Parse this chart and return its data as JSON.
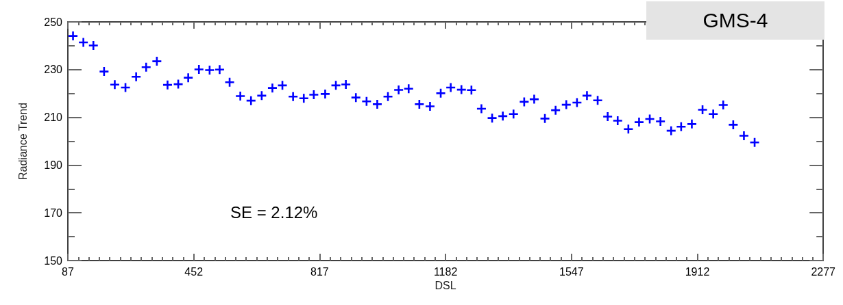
{
  "chart_data": {
    "type": "scatter",
    "title": "GMS-4",
    "xlabel": "DSL",
    "ylabel": "Radiance Trend",
    "annotations": [
      "SE = 2.12%"
    ],
    "x": [
      102,
      132,
      161,
      192,
      223,
      254,
      285,
      314,
      345,
      376,
      407,
      436,
      467,
      498,
      527,
      556,
      587,
      618,
      649,
      680,
      709,
      740,
      771,
      800,
      833,
      864,
      893,
      922,
      953,
      984,
      1015,
      1046,
      1075,
      1106,
      1137,
      1168,
      1197,
      1228,
      1257,
      1286,
      1317,
      1348,
      1379,
      1410,
      1439,
      1470,
      1501,
      1532,
      1563,
      1592,
      1623,
      1652,
      1681,
      1712,
      1743,
      1774,
      1805,
      1836,
      1865,
      1896,
      1927,
      1958,
      1987,
      2016,
      2047,
      2078
    ],
    "series": [
      {
        "color": "#0000ff",
        "values": [
          244.1,
          241.4,
          240.1,
          229.2,
          223.7,
          222.5,
          227.0,
          231.0,
          233.5,
          223.6,
          223.9,
          226.6,
          230.1,
          229.8,
          230.0,
          224.7,
          218.9,
          217.0,
          219.1,
          222.3,
          223.4,
          218.7,
          218.0,
          219.5,
          219.8,
          223.4,
          223.8,
          218.3,
          216.7,
          215.5,
          218.7,
          221.5,
          222.0,
          215.5,
          214.6,
          220.1,
          222.5,
          221.6,
          221.4,
          213.6,
          209.7,
          210.5,
          211.4,
          216.5,
          217.6,
          209.5,
          213.0,
          215.3,
          216.2,
          219.1,
          217.1,
          210.3,
          208.6,
          205.1,
          208.0,
          209.3,
          208.3,
          204.4,
          206.1,
          207.2,
          213.2,
          211.4,
          215.2,
          206.9,
          202.3,
          199.5
        ]
      }
    ],
    "xlim": [
      87,
      2277
    ],
    "xticks": [
      87,
      452,
      817,
      1182,
      1547,
      1912,
      2277
    ],
    "ylim": [
      150,
      250
    ],
    "yticks": [
      150,
      170,
      190,
      210,
      230,
      250
    ],
    "marker": "cross",
    "grid": false
  }
}
